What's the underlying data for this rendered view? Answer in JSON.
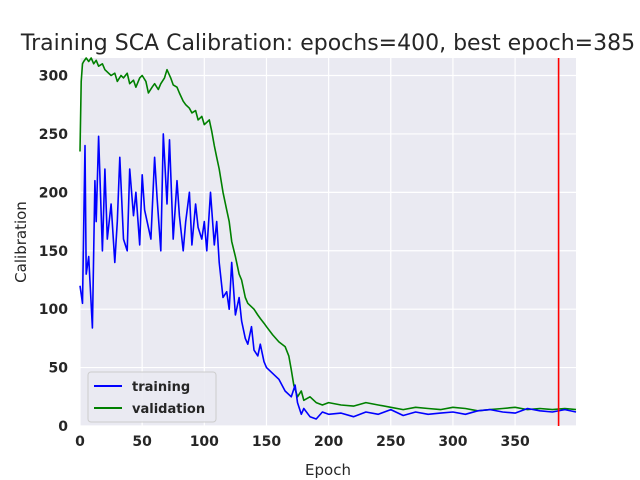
{
  "chart_data": {
    "type": "line",
    "title": "Training SCA Calibration: epochs=400, best epoch=385",
    "xlabel": "Epoch",
    "ylabel": "Calibration",
    "xlim": [
      0,
      399
    ],
    "ylim": [
      0,
      315
    ],
    "xticks": [
      0,
      50,
      100,
      150,
      200,
      250,
      300,
      350
    ],
    "yticks": [
      0,
      50,
      100,
      150,
      200,
      250,
      300
    ],
    "grid": true,
    "background": "#eaeaf2",
    "legend_position": "lower-left",
    "best_epoch": 385,
    "best_epoch_color": "#ff0000",
    "series": [
      {
        "name": "training",
        "color": "#0000ff",
        "x": [
          0,
          2,
          3,
          4,
          5,
          7,
          8,
          10,
          12,
          13,
          15,
          18,
          20,
          22,
          25,
          28,
          30,
          32,
          35,
          38,
          40,
          43,
          45,
          48,
          50,
          52,
          55,
          57,
          60,
          62,
          65,
          67,
          70,
          72,
          75,
          78,
          80,
          83,
          85,
          88,
          90,
          93,
          95,
          98,
          100,
          102,
          105,
          108,
          110,
          112,
          115,
          118,
          120,
          122,
          125,
          128,
          130,
          133,
          135,
          138,
          140,
          143,
          145,
          148,
          150,
          155,
          160,
          165,
          170,
          173,
          175,
          178,
          180,
          185,
          190,
          195,
          200,
          210,
          220,
          230,
          240,
          250,
          260,
          270,
          280,
          290,
          300,
          310,
          320,
          330,
          340,
          350,
          360,
          370,
          380,
          390,
          399
        ],
        "y": [
          120,
          105,
          170,
          240,
          130,
          145,
          125,
          84,
          210,
          175,
          248,
          150,
          220,
          160,
          190,
          140,
          175,
          230,
          160,
          150,
          220,
          180,
          200,
          155,
          215,
          185,
          170,
          160,
          230,
          195,
          150,
          250,
          190,
          245,
          160,
          210,
          180,
          150,
          175,
          200,
          155,
          190,
          170,
          160,
          175,
          150,
          200,
          155,
          175,
          140,
          110,
          115,
          100,
          140,
          95,
          110,
          90,
          75,
          70,
          85,
          65,
          60,
          70,
          55,
          50,
          45,
          40,
          30,
          25,
          35,
          20,
          10,
          15,
          8,
          6,
          12,
          10,
          11,
          8,
          12,
          10,
          14,
          9,
          12,
          10,
          11,
          12,
          10,
          13,
          14,
          12,
          11,
          15,
          13,
          12,
          14,
          12
        ]
      },
      {
        "name": "validation",
        "color": "#008000",
        "x": [
          0,
          1,
          2,
          3,
          5,
          7,
          9,
          11,
          13,
          15,
          18,
          20,
          23,
          25,
          28,
          30,
          33,
          35,
          38,
          40,
          43,
          45,
          48,
          50,
          53,
          55,
          58,
          60,
          63,
          65,
          68,
          70,
          73,
          75,
          78,
          80,
          83,
          85,
          88,
          90,
          93,
          95,
          98,
          100,
          102,
          104,
          106,
          108,
          110,
          112,
          115,
          118,
          120,
          122,
          125,
          128,
          130,
          133,
          135,
          138,
          140,
          143,
          145,
          148,
          150,
          155,
          160,
          165,
          168,
          170,
          172,
          175,
          178,
          180,
          185,
          190,
          195,
          200,
          210,
          220,
          230,
          240,
          250,
          260,
          270,
          280,
          290,
          300,
          310,
          320,
          330,
          340,
          350,
          360,
          370,
          380,
          390,
          399
        ],
        "y": [
          235,
          295,
          310,
          312,
          315,
          312,
          315,
          310,
          313,
          308,
          310,
          305,
          302,
          300,
          302,
          295,
          300,
          298,
          302,
          293,
          296,
          290,
          298,
          300,
          295,
          285,
          290,
          293,
          288,
          293,
          298,
          305,
          298,
          292,
          290,
          285,
          278,
          275,
          272,
          268,
          270,
          262,
          265,
          258,
          260,
          262,
          252,
          240,
          230,
          220,
          200,
          185,
          175,
          158,
          145,
          130,
          125,
          110,
          105,
          102,
          100,
          95,
          92,
          88,
          85,
          78,
          72,
          68,
          60,
          48,
          35,
          25,
          30,
          22,
          25,
          20,
          18,
          20,
          18,
          17,
          20,
          18,
          16,
          14,
          16,
          15,
          14,
          16,
          15,
          13,
          14,
          15,
          16,
          14,
          15,
          14,
          15,
          14
        ]
      }
    ]
  }
}
